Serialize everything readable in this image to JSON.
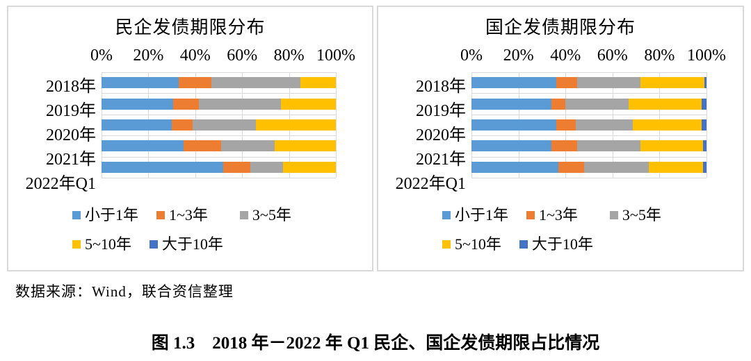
{
  "figure": {
    "caption": "图 1.3　2018 年－2022 年 Q1 民企、国企发债期限占比情况",
    "source_note": "数据来源：Wind，联合资信整理"
  },
  "chart_data": [
    {
      "type": "bar",
      "stacked": true,
      "orientation": "horizontal",
      "title": "民企发债期限分布",
      "categories": [
        "2018年",
        "2019年",
        "2020年",
        "2021年",
        "2022年Q1"
      ],
      "x_ticks": [
        "0%",
        "20%",
        "40%",
        "60%",
        "80%",
        "100%"
      ],
      "xlim": [
        0,
        100
      ],
      "unit": "%",
      "grid": true,
      "legend_position": "bottom",
      "series": [
        {
          "name": "小于1年",
          "color": "#5B9BD5",
          "values": [
            33,
            30.5,
            30,
            35,
            52
          ]
        },
        {
          "name": "1~3年",
          "color": "#ED7D31",
          "values": [
            14,
            11,
            9,
            16,
            11.5
          ]
        },
        {
          "name": "3~5年",
          "color": "#A5A5A5",
          "values": [
            38,
            35,
            27,
            23,
            14
          ]
        },
        {
          "name": "5~10年",
          "color": "#FFC000",
          "values": [
            15,
            23.5,
            34,
            26,
            22.5
          ]
        },
        {
          "name": "大于10年",
          "color": "#4472C4",
          "values": [
            0,
            0,
            0,
            0,
            0
          ]
        }
      ]
    },
    {
      "type": "bar",
      "stacked": true,
      "orientation": "horizontal",
      "title": "国企发债期限分布",
      "categories": [
        "2018年",
        "2019年",
        "2020年",
        "2021年",
        "2022年Q1"
      ],
      "x_ticks": [
        "0%",
        "20%",
        "40%",
        "60%",
        "80%",
        "100%"
      ],
      "xlim": [
        0,
        100
      ],
      "unit": "%",
      "grid": true,
      "legend_position": "bottom",
      "series": [
        {
          "name": "小于1年",
          "color": "#5B9BD5",
          "values": [
            36,
            34,
            36,
            34,
            37
          ]
        },
        {
          "name": "1~3年",
          "color": "#ED7D31",
          "values": [
            9,
            6,
            8.5,
            11,
            11
          ]
        },
        {
          "name": "3~5年",
          "color": "#A5A5A5",
          "values": [
            27,
            27,
            24,
            27,
            27.5
          ]
        },
        {
          "name": "5~10年",
          "color": "#FFC000",
          "values": [
            27,
            31,
            29.5,
            26.5,
            23
          ]
        },
        {
          "name": "大于10年",
          "color": "#4472C4",
          "values": [
            1,
            2,
            2,
            1.5,
            1.5
          ]
        }
      ]
    }
  ]
}
